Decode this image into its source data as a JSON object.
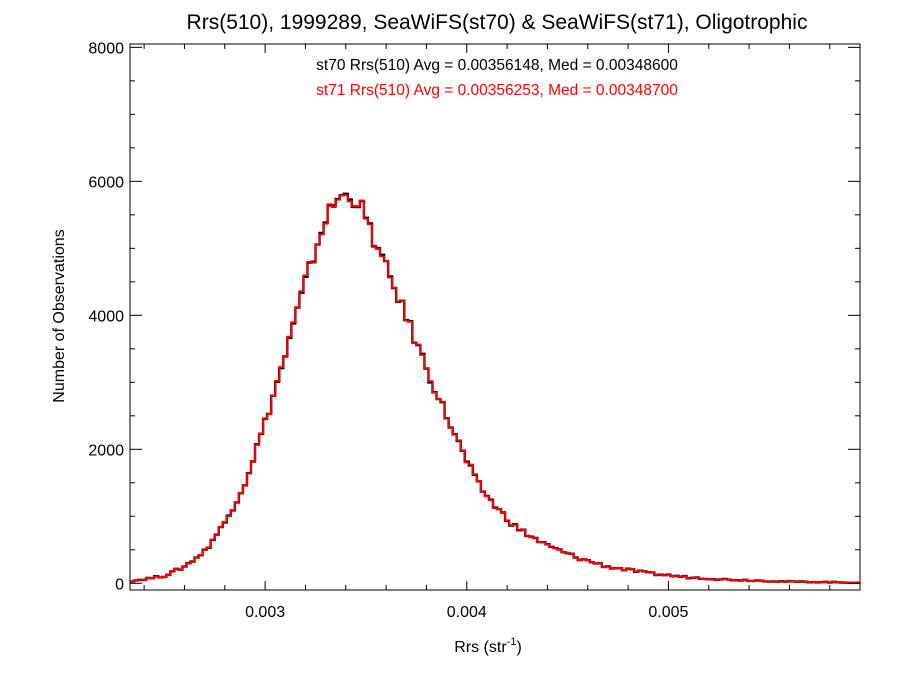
{
  "chart_data": {
    "type": "histogram-step",
    "title": "Rrs(510), 1999289, SeaWiFS(st70) & SeaWiFS(st71), Oligotrophic",
    "xlabel_main": "Rrs (str",
    "xlabel_sup": "-1",
    "xlabel_close": ")",
    "ylabel": "Number of Observations",
    "xlim": [
      0.00233,
      0.00595
    ],
    "ylim": [
      -100,
      8050
    ],
    "x_ticks": [
      0.003,
      0.004,
      0.005
    ],
    "x_tick_labels": [
      "0.003",
      "0.004",
      "0.005"
    ],
    "x_minor_step": 0.0002,
    "y_ticks": [
      0,
      2000,
      4000,
      6000,
      8000
    ],
    "y_tick_labels": [
      "0",
      "2000",
      "4000",
      "6000",
      "8000"
    ],
    "y_minor_step": 500,
    "grid": false,
    "bin_width": 2e-05,
    "annotations": [
      {
        "text": "st70 Rrs(510) Avg = 0.00356148, Med = 0.00348600",
        "color": "#000000"
      },
      {
        "text": "st71 Rrs(510) Avg = 0.00356253, Med = 0.00348700",
        "color": "#ff0000"
      }
    ],
    "curve_points": [
      [
        0.00233,
        30
      ],
      [
        0.0025,
        110
      ],
      [
        0.0026,
        250
      ],
      [
        0.0027,
        480
      ],
      [
        0.0028,
        900
      ],
      [
        0.0029,
        1500
      ],
      [
        0.003,
        2400
      ],
      [
        0.0031,
        3400
      ],
      [
        0.0032,
        4500
      ],
      [
        0.0033,
        5450
      ],
      [
        0.00336,
        5750
      ],
      [
        0.00342,
        5800
      ],
      [
        0.00348,
        5600
      ],
      [
        0.00355,
        5050
      ],
      [
        0.00365,
        4350
      ],
      [
        0.00375,
        3600
      ],
      [
        0.00385,
        2850
      ],
      [
        0.00395,
        2150
      ],
      [
        0.00405,
        1500
      ],
      [
        0.00415,
        1120
      ],
      [
        0.00425,
        820
      ],
      [
        0.0044,
        560
      ],
      [
        0.00455,
        380
      ],
      [
        0.0047,
        250
      ],
      [
        0.0049,
        150
      ],
      [
        0.0051,
        90
      ],
      [
        0.0053,
        55
      ],
      [
        0.0056,
        25
      ],
      [
        0.00595,
        10
      ]
    ],
    "series": [
      {
        "name": "st70",
        "color": "#000000"
      },
      {
        "name": "st71",
        "color": "#ff0000"
      }
    ]
  }
}
